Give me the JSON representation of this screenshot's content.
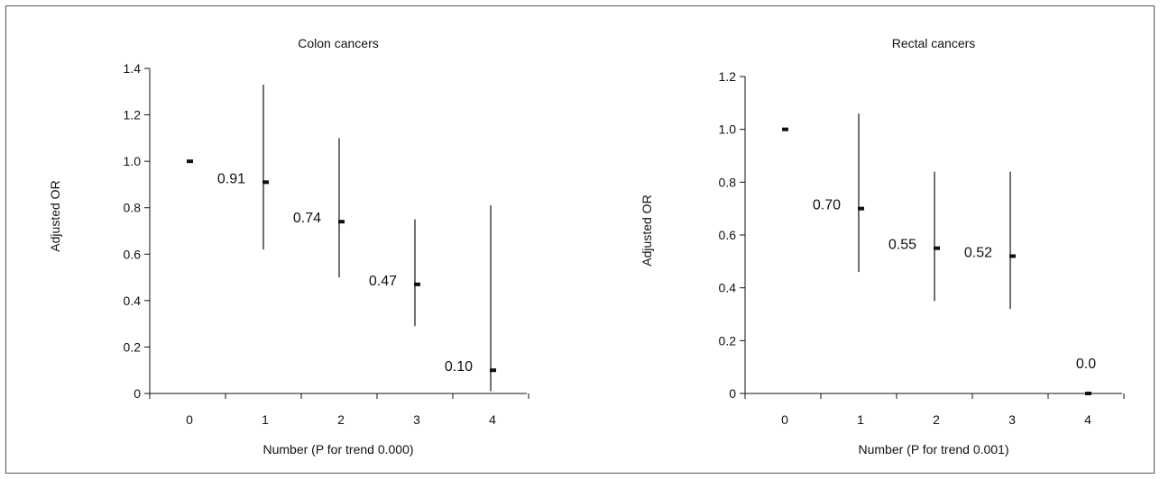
{
  "chart_data": [
    {
      "type": "scatter",
      "title": "Colon cancers",
      "xlabel": "Number (P for trend 0.000)",
      "ylabel": "Adjusted OR",
      "categories": [
        "0",
        "1",
        "2",
        "3",
        "4"
      ],
      "ylim": [
        0,
        1.4
      ],
      "yticks": [
        "0",
        "0.2",
        "0.4",
        "0.6",
        "0.8",
        "1.0",
        "1.2",
        "1.4"
      ],
      "points": [
        {
          "x": "0",
          "or": 1.0,
          "lower": null,
          "upper": null,
          "label": ""
        },
        {
          "x": "1",
          "or": 0.91,
          "lower": 0.62,
          "upper": 1.33,
          "label": "0.91"
        },
        {
          "x": "2",
          "or": 0.74,
          "lower": 0.5,
          "upper": 1.1,
          "label": "0.74"
        },
        {
          "x": "3",
          "or": 0.47,
          "lower": 0.29,
          "upper": 0.75,
          "label": "0.47"
        },
        {
          "x": "4",
          "or": 0.1,
          "lower": 0.01,
          "upper": 0.81,
          "label": "0.10"
        }
      ],
      "grid": false,
      "legend": "none"
    },
    {
      "type": "scatter",
      "title": "Rectal cancers",
      "xlabel": "Number (P for trend 0.001)",
      "ylabel": "Adjusted OR",
      "categories": [
        "0",
        "1",
        "2",
        "3",
        "4"
      ],
      "ylim": [
        0,
        1.2
      ],
      "yticks": [
        "0",
        "0.2",
        "0.4",
        "0.6",
        "0.8",
        "1.0",
        "1.2"
      ],
      "points": [
        {
          "x": "0",
          "or": 1.0,
          "lower": null,
          "upper": null,
          "label": ""
        },
        {
          "x": "1",
          "or": 0.7,
          "lower": 0.46,
          "upper": 1.06,
          "label": "0.70"
        },
        {
          "x": "2",
          "or": 0.55,
          "lower": 0.35,
          "upper": 0.84,
          "label": "0.55"
        },
        {
          "x": "3",
          "or": 0.52,
          "lower": 0.32,
          "upper": 0.84,
          "label": "0.52"
        },
        {
          "x": "4",
          "or": 0.0,
          "lower": null,
          "upper": null,
          "label": "0.0"
        }
      ],
      "grid": false,
      "legend": "none"
    }
  ]
}
